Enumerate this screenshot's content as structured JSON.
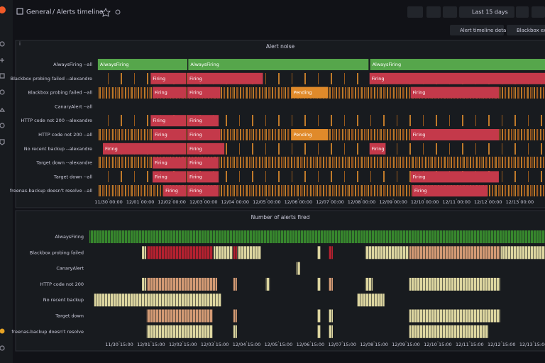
{
  "header": {
    "breadcrumb_folder": "General",
    "breadcrumb_title": "/ Alerts timeline",
    "time_range": "Last 15 days",
    "links": [
      "Alert timeline detail",
      "Blackbox exp"
    ]
  },
  "panels": [
    {
      "title": "Alert noise",
      "xlim": [
        -0.36,
        13.8
      ],
      "xticks": [
        {
          "value": 0,
          "label": "11/30 00:00"
        },
        {
          "value": 1,
          "label": "12/01 00:00"
        },
        {
          "value": 2,
          "label": "12/02 00:00"
        },
        {
          "value": 3,
          "label": "12/03 00:00"
        },
        {
          "value": 4,
          "label": "12/04 00:00"
        },
        {
          "value": 5,
          "label": "12/05 00:00"
        },
        {
          "value": 6,
          "label": "12/06 00:00"
        },
        {
          "value": 7,
          "label": "12/07 00:00"
        },
        {
          "value": 8,
          "label": "12/08 00:00"
        },
        {
          "value": 9,
          "label": "12/09 00:00"
        },
        {
          "value": 10,
          "label": "12/10 00:00"
        },
        {
          "value": 11,
          "label": "12/11 00:00"
        },
        {
          "value": 12,
          "label": "12/12 00:00"
        },
        {
          "value": 13,
          "label": "12/13 00:00"
        }
      ],
      "rows": [
        {
          "label": "AlwaysFiring --all",
          "segments": [
            {
              "start": -0.34,
              "end": 2.49,
              "state": "AlwaysFiring",
              "color": "#56a64b"
            },
            {
              "start": 2.52,
              "end": 8.22,
              "state": "AlwaysFiring",
              "color": "#56a64b"
            },
            {
              "start": 8.27,
              "end": 13.8,
              "state": "AlwaysFiring",
              "color": "#56a64b"
            }
          ]
        },
        {
          "label": "Blackbox probing failed --alexandre",
          "segments": [
            {
              "start": 1.33,
              "end": 2.45,
              "state": "Firing",
              "color": "#c4394a"
            },
            {
              "start": 2.49,
              "end": 4.88,
              "state": "Firing",
              "color": "#c4394a"
            },
            {
              "start": 8.25,
              "end": 13.8,
              "state": "Firing",
              "color": "#c4394a"
            }
          ]
        },
        {
          "label": "Blackbox probing failed --all",
          "segments": [
            {
              "start": 1.39,
              "end": 2.45,
              "state": "Firing",
              "color": "#c4394a"
            },
            {
              "start": 2.49,
              "end": 3.53,
              "state": "Firing",
              "color": "#c4394a"
            },
            {
              "start": 5.78,
              "end": 6.94,
              "state": "Pending",
              "color": "#e08a2a"
            },
            {
              "start": 9.55,
              "end": 12.34,
              "state": "Firing",
              "color": "#c4394a"
            }
          ]
        },
        {
          "label": "CanaryAlert --all",
          "segments": []
        },
        {
          "label": "HTTP code not 200 --alexandre",
          "segments": [
            {
              "start": 1.33,
              "end": 2.45,
              "state": "Firing",
              "color": "#c4394a"
            },
            {
              "start": 2.49,
              "end": 3.48,
              "state": "Firing",
              "color": "#c4394a"
            }
          ]
        },
        {
          "label": "HTTP code not 200 --all",
          "segments": [
            {
              "start": 1.39,
              "end": 2.45,
              "state": "Firing",
              "color": "#c4394a"
            },
            {
              "start": 2.49,
              "end": 3.53,
              "state": "Firing",
              "color": "#c4394a"
            },
            {
              "start": 5.78,
              "end": 6.94,
              "state": "Pending",
              "color": "#e08a2a"
            },
            {
              "start": 9.55,
              "end": 12.34,
              "state": "Firing",
              "color": "#c4394a"
            }
          ]
        },
        {
          "label": "No recent backup --alexandre",
          "segments": [
            {
              "start": -0.18,
              "end": 2.45,
              "state": "Firing",
              "color": "#c4394a"
            },
            {
              "start": 2.49,
              "end": 3.66,
              "state": "Firing",
              "color": "#c4394a"
            },
            {
              "start": 8.25,
              "end": 8.76,
              "state": "Firing",
              "color": "#c4394a"
            }
          ]
        },
        {
          "label": "Target down --alexandre",
          "segments": [
            {
              "start": 1.39,
              "end": 2.45,
              "state": "Firing",
              "color": "#c4394a"
            },
            {
              "start": 2.49,
              "end": 3.48,
              "state": "Firing",
              "color": "#c4394a"
            }
          ]
        },
        {
          "label": "Target down --all",
          "segments": [
            {
              "start": 1.39,
              "end": 2.45,
              "state": "Firing",
              "color": "#c4394a"
            },
            {
              "start": 2.49,
              "end": 3.48,
              "state": "Firing",
              "color": "#c4394a"
            },
            {
              "start": 9.55,
              "end": 12.34,
              "state": "Firing",
              "color": "#c4394a"
            }
          ]
        },
        {
          "label": "freenas-backup doesn't resolve --all",
          "segments": [
            {
              "start": 1.73,
              "end": 2.45,
              "state": "Firing",
              "color": "#c4394a"
            },
            {
              "start": 2.49,
              "end": 3.48,
              "state": "Firing",
              "color": "#c4394a"
            },
            {
              "start": 9.6,
              "end": 11.98,
              "state": "Firing",
              "color": "#c4394a"
            }
          ]
        }
      ]
    },
    {
      "title": "Number of alerts fired",
      "xlim": [
        -0.31,
        13.99
      ],
      "xticks": [
        {
          "value": 0.625,
          "label": "11/30 15:00"
        },
        {
          "value": 1.625,
          "label": "12/01 15:00"
        },
        {
          "value": 2.625,
          "label": "12/02 15:00"
        },
        {
          "value": 3.625,
          "label": "12/03 15:00"
        },
        {
          "value": 4.625,
          "label": "12/04 15:00"
        },
        {
          "value": 5.625,
          "label": "12/05 15:00"
        },
        {
          "value": 6.625,
          "label": "12/06 15:00"
        },
        {
          "value": 7.625,
          "label": "12/07 15:00"
        },
        {
          "value": 8.625,
          "label": "12/08 15:00"
        },
        {
          "value": 9.625,
          "label": "12/09 15:00"
        },
        {
          "value": 10.625,
          "label": "12/10 15:00"
        },
        {
          "value": 11.625,
          "label": "12/11 15:00"
        },
        {
          "value": 12.625,
          "label": "12/12 15:00"
        },
        {
          "value": 13.625,
          "label": "12/13 15:00"
        }
      ],
      "rows": [
        {
          "label": "AlwaysFiring",
          "segments": [
            {
              "start": -0.31,
              "end": 13.99,
              "color": "#37872d"
            }
          ]
        },
        {
          "label": "Blackbox probing failed",
          "segments": [
            {
              "start": 1.34,
              "end": 1.47,
              "color": "#ddd6a0"
            },
            {
              "start": 1.49,
              "end": 3.56,
              "color": "#b5212f"
            },
            {
              "start": 3.59,
              "end": 4.19,
              "color": "#ddd6a0"
            },
            {
              "start": 4.21,
              "end": 4.32,
              "color": "#b5212f"
            },
            {
              "start": 4.34,
              "end": 5.08,
              "color": "#ddd6a0"
            },
            {
              "start": 6.84,
              "end": 6.95,
              "color": "#ddd6a0"
            },
            {
              "start": 7.2,
              "end": 7.33,
              "color": "#b5212f"
            },
            {
              "start": 8.35,
              "end": 9.71,
              "color": "#ddd6a0"
            },
            {
              "start": 9.73,
              "end": 12.58,
              "color": "#d39a74"
            },
            {
              "start": 12.6,
              "end": 13.99,
              "color": "#ddd6a0"
            }
          ]
        },
        {
          "label": "CanaryAlert",
          "segments": [
            {
              "start": 6.19,
              "end": 6.3,
              "color": "#ddd6a0"
            }
          ]
        },
        {
          "label": "HTTP code not 200",
          "segments": [
            {
              "start": 1.34,
              "end": 1.47,
              "color": "#ddd6a0"
            },
            {
              "start": 1.49,
              "end": 3.7,
              "color": "#d39a74"
            },
            {
              "start": 4.21,
              "end": 4.32,
              "color": "#d39a74"
            },
            {
              "start": 5.23,
              "end": 5.35,
              "color": "#ddd6a0"
            },
            {
              "start": 6.84,
              "end": 6.95,
              "color": "#ddd6a0"
            },
            {
              "start": 7.2,
              "end": 7.33,
              "color": "#d39a74"
            },
            {
              "start": 8.35,
              "end": 8.58,
              "color": "#ddd6a0"
            },
            {
              "start": 9.73,
              "end": 12.58,
              "color": "#ddd6a0"
            }
          ]
        },
        {
          "label": "No recent backup",
          "segments": [
            {
              "start": -0.16,
              "end": 3.83,
              "color": "#ddd6a0"
            },
            {
              "start": 8.09,
              "end": 8.95,
              "color": "#ddd6a0"
            }
          ]
        },
        {
          "label": "Target down",
          "segments": [
            {
              "start": 1.49,
              "end": 3.56,
              "color": "#d39a74"
            },
            {
              "start": 4.21,
              "end": 4.32,
              "color": "#d39a74"
            },
            {
              "start": 6.84,
              "end": 6.95,
              "color": "#ddd6a0"
            },
            {
              "start": 7.2,
              "end": 7.33,
              "color": "#ddd6a0"
            },
            {
              "start": 9.73,
              "end": 12.58,
              "color": "#ddd6a0"
            }
          ]
        },
        {
          "label": "freenas-backup doesn't resolve",
          "segments": [
            {
              "start": 1.49,
              "end": 3.56,
              "color": "#ddd6a0"
            },
            {
              "start": 4.21,
              "end": 4.32,
              "color": "#ddd6a0"
            },
            {
              "start": 6.84,
              "end": 6.95,
              "color": "#ddd6a0"
            },
            {
              "start": 7.2,
              "end": 7.33,
              "color": "#ddd6a0"
            },
            {
              "start": 9.73,
              "end": 12.21,
              "color": "#ddd6a0"
            }
          ]
        }
      ]
    }
  ]
}
